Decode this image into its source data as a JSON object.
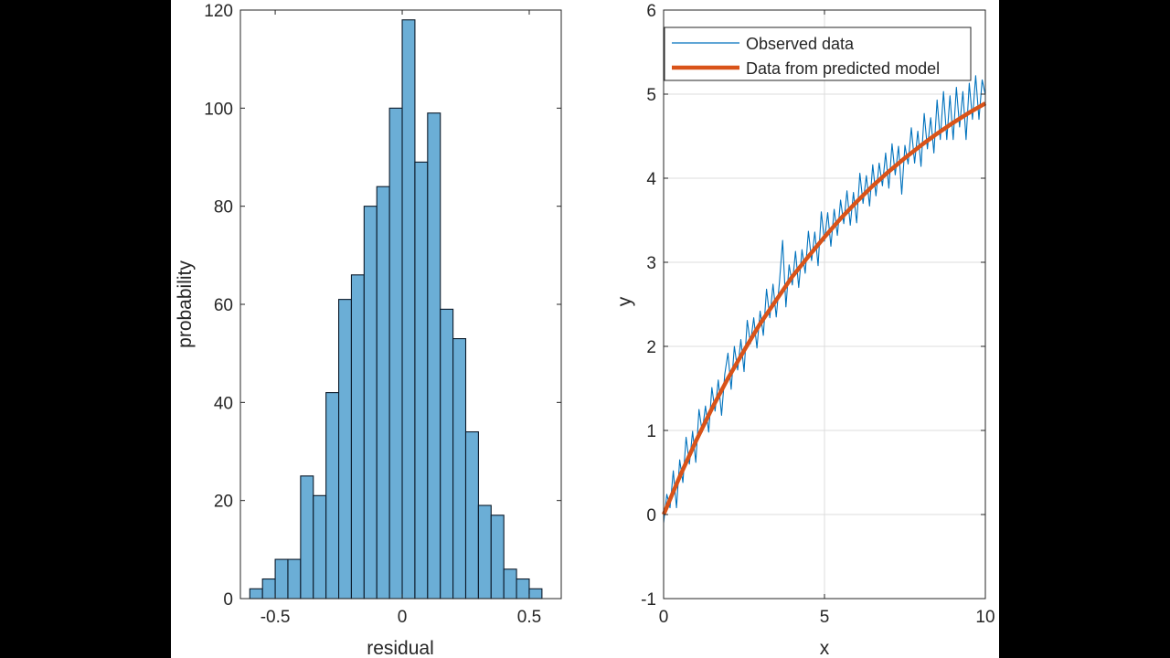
{
  "chart_data": [
    {
      "type": "bar",
      "xlabel": "residual",
      "ylabel": "probability",
      "xlim": [
        -0.637,
        0.626
      ],
      "ylim": [
        0,
        120
      ],
      "xticks": [
        "-0.5",
        "0",
        "0.5"
      ],
      "xtick_values": [
        -0.5,
        0,
        0.5
      ],
      "yticks": [
        "0",
        "20",
        "40",
        "60",
        "80",
        "100",
        "120"
      ],
      "ytick_values": [
        0,
        20,
        40,
        60,
        80,
        100,
        120
      ],
      "grid": false,
      "bin_edges": [
        -0.6,
        -0.55,
        -0.5,
        -0.45,
        -0.4,
        -0.35,
        -0.3,
        -0.25,
        -0.2,
        -0.15,
        -0.1,
        -0.05,
        0,
        0.05,
        0.1,
        0.15,
        0.2,
        0.25,
        0.3,
        0.35,
        0.4,
        0.45,
        0.5,
        0.55
      ],
      "values": [
        2,
        4,
        8,
        8,
        25,
        21,
        42,
        61,
        66,
        80,
        84,
        100,
        118,
        89,
        99,
        59,
        53,
        34,
        19,
        17,
        6,
        4,
        2
      ],
      "bar_color": "#6baed6",
      "edge_color": "#0b1a2a"
    },
    {
      "type": "line",
      "xlabel": "x",
      "ylabel": "y",
      "xlim": [
        0,
        10
      ],
      "ylim": [
        -1,
        6
      ],
      "xticks": [
        "0",
        "5",
        "10"
      ],
      "xtick_values": [
        0,
        5,
        10
      ],
      "yticks": [
        "-1",
        "0",
        "1",
        "2",
        "3",
        "4",
        "5",
        "6"
      ],
      "ytick_values": [
        -1,
        0,
        1,
        2,
        3,
        4,
        5,
        6
      ],
      "grid": true,
      "legend_position": "top",
      "series": [
        {
          "name": "Observed data",
          "color": "#0072bd",
          "x": [
            0,
            0.1,
            0.2,
            0.3,
            0.4,
            0.5,
            0.6,
            0.7,
            0.8,
            0.9,
            1,
            1.1,
            1.2,
            1.3,
            1.4,
            1.5,
            1.6,
            1.7,
            1.8,
            1.9,
            2,
            2.1,
            2.2,
            2.3,
            2.4,
            2.5,
            2.6,
            2.7,
            2.8,
            2.9,
            3,
            3.1,
            3.2,
            3.3,
            3.4,
            3.5,
            3.6,
            3.7,
            3.8,
            3.9,
            4,
            4.1,
            4.2,
            4.3,
            4.4,
            4.5,
            4.6,
            4.7,
            4.8,
            4.9,
            5,
            5.1,
            5.2,
            5.3,
            5.4,
            5.5,
            5.6,
            5.7,
            5.8,
            5.9,
            6,
            6.1,
            6.2,
            6.3,
            6.4,
            6.5,
            6.6,
            6.7,
            6.8,
            6.9,
            7,
            7.1,
            7.2,
            7.3,
            7.4,
            7.5,
            7.6,
            7.7,
            7.8,
            7.9,
            8,
            8.1,
            8.2,
            8.3,
            8.4,
            8.5,
            8.6,
            8.7,
            8.8,
            8.9,
            9,
            9.1,
            9.2,
            9.3,
            9.4,
            9.5,
            9.6,
            9.7,
            9.8,
            9.9,
            10
          ],
          "y": [
            -0.1,
            0.24,
            0.08,
            0.52,
            0.08,
            0.65,
            0.38,
            0.92,
            0.6,
            0.99,
            0.62,
            1.25,
            0.98,
            1.29,
            0.98,
            1.51,
            1.23,
            1.6,
            1.18,
            1.67,
            1.92,
            1.49,
            2.0,
            1.72,
            2.08,
            1.7,
            2.31,
            2.03,
            2.34,
            1.98,
            2.42,
            2.13,
            2.68,
            2.34,
            2.74,
            2.35,
            2.76,
            3.26,
            2.47,
            2.97,
            2.73,
            3.13,
            2.7,
            3.15,
            2.87,
            3.37,
            3.02,
            3.36,
            2.96,
            3.6,
            3.25,
            3.59,
            3.19,
            3.63,
            3.32,
            3.74,
            3.46,
            3.85,
            3.44,
            3.83,
            3.47,
            4.06,
            3.7,
            4.03,
            3.67,
            4.16,
            3.79,
            4.18,
            3.91,
            4.3,
            3.88,
            4.41,
            4.04,
            4.38,
            3.81,
            4.39,
            4.17,
            4.6,
            4.18,
            4.56,
            4.14,
            4.77,
            4.35,
            4.72,
            4.3,
            4.93,
            4.46,
            5.03,
            4.46,
            4.98,
            4.46,
            5.08,
            4.61,
            5.03,
            4.46,
            5.13,
            4.7,
            5.22,
            4.7,
            5.17,
            4.99
          ]
        },
        {
          "name": "Data from predicted model",
          "color": "#d95319",
          "x": [
            0,
            0.5,
            1,
            1.5,
            2,
            2.5,
            3,
            3.5,
            4,
            4.5,
            5,
            5.5,
            6,
            6.5,
            7,
            7.5,
            8,
            8.5,
            9,
            9.5,
            10
          ],
          "y": [
            0,
            0.45,
            0.87,
            1.26,
            1.62,
            1.95,
            2.27,
            2.55,
            2.83,
            3.07,
            3.3,
            3.52,
            3.72,
            3.91,
            4.08,
            4.24,
            4.39,
            4.53,
            4.66,
            4.78,
            4.89
          ]
        }
      ]
    }
  ]
}
